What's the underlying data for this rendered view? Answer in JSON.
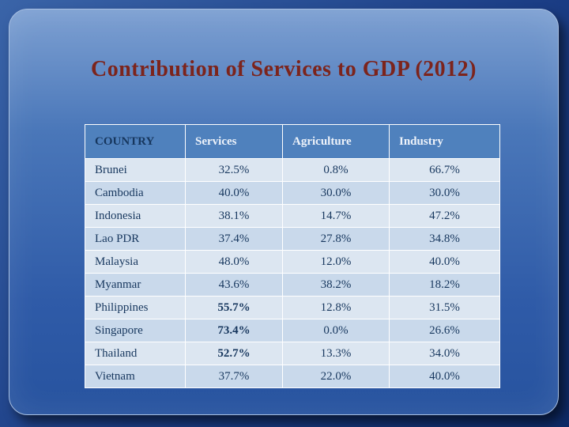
{
  "slide": {
    "title": "Contribution of Services to GDP (2012)"
  },
  "chart_data": {
    "type": "table",
    "title": "Contribution of Services to GDP (2012)",
    "columns": [
      "COUNTRY",
      "Services",
      "Agriculture",
      "Industry"
    ],
    "rows": [
      {
        "country": "Brunei",
        "services": "32.5%",
        "agriculture": "0.8%",
        "industry": "66.7%",
        "emphasis": false
      },
      {
        "country": "Cambodia",
        "services": "40.0%",
        "agriculture": "30.0%",
        "industry": "30.0%",
        "emphasis": false
      },
      {
        "country": "Indonesia",
        "services": "38.1%",
        "agriculture": "14.7%",
        "industry": "47.2%",
        "emphasis": false
      },
      {
        "country": "Lao PDR",
        "services": "37.4%",
        "agriculture": "27.8%",
        "industry": "34.8%",
        "emphasis": false
      },
      {
        "country": "Malaysia",
        "services": "48.0%",
        "agriculture": "12.0%",
        "industry": "40.0%",
        "emphasis": false
      },
      {
        "country": "Myanmar",
        "services": "43.6%",
        "agriculture": "38.2%",
        "industry": "18.2%",
        "emphasis": false
      },
      {
        "country": "Philippines",
        "services": "55.7%",
        "agriculture": "12.8%",
        "industry": "31.5%",
        "emphasis": true
      },
      {
        "country": "Singapore",
        "services": "73.4%",
        "agriculture": "0.0%",
        "industry": "26.6%",
        "emphasis": true
      },
      {
        "country": "Thailand",
        "services": "52.7%",
        "agriculture": "13.3%",
        "industry": "34.0%",
        "emphasis": true
      },
      {
        "country": "Vietnam",
        "services": "37.7%",
        "agriculture": "22.0%",
        "industry": "40.0%",
        "emphasis": false
      }
    ],
    "colors": {
      "header_background": "#4f81bd",
      "header_country_text": "#17375e",
      "header_value_text": "#eef3fa",
      "row_light": "#dce6f1",
      "row_dark": "#c9d9eb",
      "title_text": "#7c241c",
      "body_text": "#17375e"
    },
    "layout_hints": {
      "banded_rows": true,
      "grid": "white 1px lines",
      "value_alignment": "center",
      "country_alignment": "left"
    }
  }
}
